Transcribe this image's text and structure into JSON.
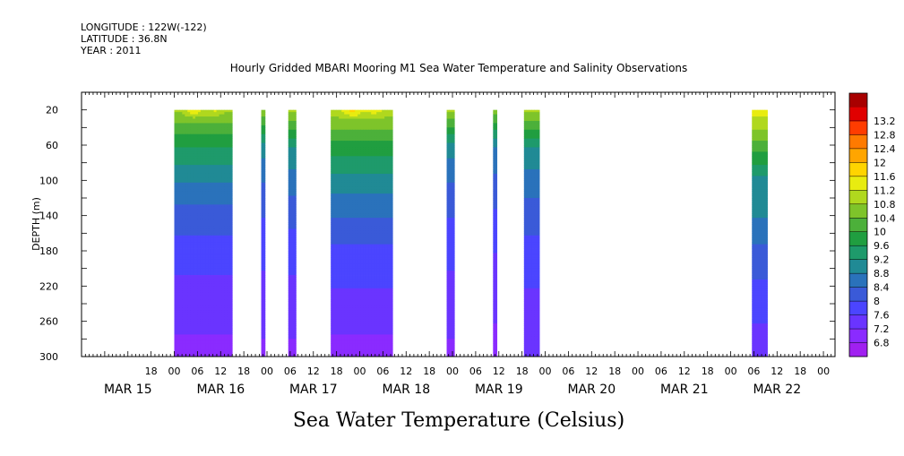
{
  "header": {
    "longitude": "LONGITUDE : 122W(-122)",
    "latitude": "LATITUDE : 36.8N",
    "year": "YEAR : 2011"
  },
  "chart_data": {
    "type": "heatmap",
    "title": "Hourly Gridded MBARI Mooring M1 Sea Water Temperature and Salinity Observations",
    "xlabel": "Sea Water Temperature (Celsius)",
    "ylabel": "DEPTH (m)",
    "ylim": [
      0,
      300
    ],
    "y_inverted": true,
    "y_ticks": [
      20,
      60,
      100,
      140,
      180,
      220,
      260,
      300
    ],
    "x_hour_ticks": [
      {
        "t": -6,
        "label": "18"
      },
      {
        "t": 0,
        "label": "00"
      },
      {
        "t": 6,
        "label": "06"
      },
      {
        "t": 12,
        "label": "12"
      },
      {
        "t": 18,
        "label": "18"
      },
      {
        "t": 24,
        "label": "00"
      },
      {
        "t": 30,
        "label": "06"
      },
      {
        "t": 36,
        "label": "12"
      },
      {
        "t": 42,
        "label": "18"
      },
      {
        "t": 48,
        "label": "00"
      },
      {
        "t": 54,
        "label": "06"
      },
      {
        "t": 60,
        "label": "12"
      },
      {
        "t": 66,
        "label": "18"
      },
      {
        "t": 72,
        "label": "00"
      },
      {
        "t": 78,
        "label": "06"
      },
      {
        "t": 84,
        "label": "12"
      },
      {
        "t": 90,
        "label": "18"
      },
      {
        "t": 96,
        "label": "00"
      },
      {
        "t": 102,
        "label": "06"
      },
      {
        "t": 108,
        "label": "12"
      },
      {
        "t": 114,
        "label": "18"
      },
      {
        "t": 120,
        "label": "00"
      },
      {
        "t": 126,
        "label": "06"
      },
      {
        "t": 132,
        "label": "12"
      },
      {
        "t": 138,
        "label": "18"
      },
      {
        "t": 144,
        "label": "00"
      },
      {
        "t": 150,
        "label": "06"
      },
      {
        "t": 156,
        "label": "12"
      },
      {
        "t": 162,
        "label": "18"
      },
      {
        "t": 168,
        "label": "00"
      }
    ],
    "x_day_labels": [
      {
        "t": -12,
        "label": "MAR 15"
      },
      {
        "t": 12,
        "label": "MAR 16"
      },
      {
        "t": 36,
        "label": "MAR 17"
      },
      {
        "t": 60,
        "label": "MAR 18"
      },
      {
        "t": 84,
        "label": "MAR 19"
      },
      {
        "t": 108,
        "label": "MAR 20"
      },
      {
        "t": 132,
        "label": "MAR 21"
      },
      {
        "t": 156,
        "label": "MAR 22"
      }
    ],
    "colorbar_levels": [
      6.8,
      7.2,
      7.6,
      8,
      8.4,
      8.8,
      9.2,
      9.6,
      10,
      10.4,
      10.8,
      11.2,
      11.6,
      12,
      12.4,
      12.8,
      13.2
    ],
    "colorbar_labels": [
      "6.8",
      "7.2",
      "7.6",
      "8",
      "8.4",
      "8.8",
      "9.2",
      "9.6",
      "10",
      "10.4",
      "10.8",
      "11.2",
      "11.6",
      "12",
      "12.4",
      "12.8",
      "13.2"
    ],
    "colorbar_colors": [
      "#a020f0",
      "#8a2bff",
      "#6a34ff",
      "#4b45ff",
      "#3a5ad8",
      "#2a72bb",
      "#208a95",
      "#1e9a6b",
      "#209e40",
      "#4cb03a",
      "#7ec42a",
      "#b0d81e",
      "#e8ec10",
      "#ffd400",
      "#ffa500",
      "#ff7a00",
      "#ff3c00",
      "#e00000",
      "#a80000"
    ],
    "segments": [
      {
        "start": 0,
        "end": 15,
        "profile": [
          10.8,
          9.6,
          8.8,
          8.2,
          7.8,
          7.5,
          7.3,
          7.0
        ],
        "surface_peak": 11.6
      },
      {
        "start": 22.5,
        "end": 23.5,
        "profile": [
          10.6,
          9.0,
          8.4,
          8.0,
          7.7,
          7.5,
          7.3,
          7.1
        ]
      },
      {
        "start": 29.5,
        "end": 31.5,
        "profile": [
          10.8,
          9.2,
          8.6,
          8.1,
          7.8,
          7.5,
          7.3,
          7.1
        ]
      },
      {
        "start": 40.5,
        "end": 56.5,
        "profile": [
          11.0,
          9.8,
          9.0,
          8.4,
          7.9,
          7.6,
          7.3,
          7.0
        ],
        "surface_peak": 11.8
      },
      {
        "start": 70.5,
        "end": 72.5,
        "profile": [
          10.8,
          9.0,
          8.4,
          8.0,
          7.7,
          7.5,
          7.3,
          7.1
        ]
      },
      {
        "start": 82.5,
        "end": 83.5,
        "profile": [
          10.6,
          8.8,
          8.3,
          7.9,
          7.6,
          7.4,
          7.2,
          7.1
        ]
      },
      {
        "start": 90.5,
        "end": 94.5,
        "profile": [
          10.8,
          9.2,
          8.6,
          8.2,
          7.8,
          7.6,
          7.4,
          7.2
        ]
      },
      {
        "start": 149.5,
        "end": 153.5,
        "profile": [
          11.4,
          10.2,
          9.0,
          8.8,
          8.3,
          7.9,
          7.6,
          7.5
        ]
      }
    ]
  }
}
